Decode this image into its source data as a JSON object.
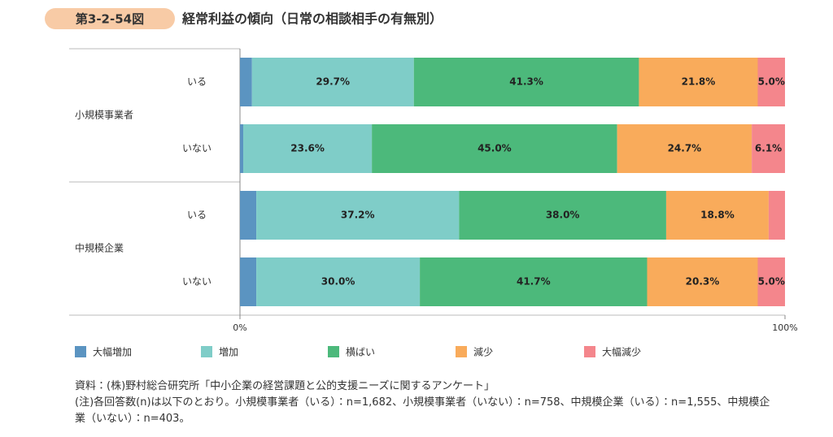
{
  "chart_data": {
    "type": "stacked-bar-horizontal",
    "figure_number": "第3-2-54図",
    "title": "経常利益の傾向（日常の相談相手の有無別）",
    "groups": [
      "小規模事業者",
      "中規模企業"
    ],
    "categories": [
      "いる",
      "いない",
      "いる",
      "いない"
    ],
    "series": [
      {
        "name": "大幅増加",
        "color": "#5b94c1",
        "values": [
          2.2,
          0.6,
          3.0,
          3.0
        ],
        "value_labels": [
          null,
          null,
          null,
          null
        ]
      },
      {
        "name": "増加",
        "color": "#7fcdc8",
        "values": [
          29.7,
          23.6,
          37.2,
          30.0
        ],
        "value_labels": [
          "29.7%",
          "23.6%",
          "37.2%",
          "30.0%"
        ]
      },
      {
        "name": "横ばい",
        "color": "#4cb97b",
        "values": [
          41.3,
          45.0,
          38.0,
          41.7
        ],
        "value_labels": [
          "41.3%",
          "45.0%",
          "38.0%",
          "41.7%"
        ]
      },
      {
        "name": "減少",
        "color": "#f9ab5b",
        "values": [
          21.8,
          24.7,
          18.8,
          20.3
        ],
        "value_labels": [
          "21.8%",
          "24.7%",
          "18.8%",
          "20.3%"
        ]
      },
      {
        "name": "大幅減少",
        "color": "#f4868c",
        "values": [
          5.0,
          6.1,
          3.0,
          5.0
        ],
        "value_labels": [
          "5.0%",
          "6.1%",
          null,
          "5.0%"
        ]
      }
    ],
    "xlim": [
      0,
      100
    ],
    "xticks": [
      {
        "value": 0,
        "label": "0%"
      },
      {
        "value": 100,
        "label": "100%"
      }
    ],
    "legend": "bottom",
    "source": "資料：(株)野村総合研究所「中小企業の経営課題と公的支援ニーズに関するアンケート」",
    "note": "(注)各回答数(n)は以下のとおり。小規模事業者（いる）：n=1,682、小規模事業者（いない）：n=758、中規模企業（いる）：n=1,555、中規模企業（いない）：n=403。"
  }
}
